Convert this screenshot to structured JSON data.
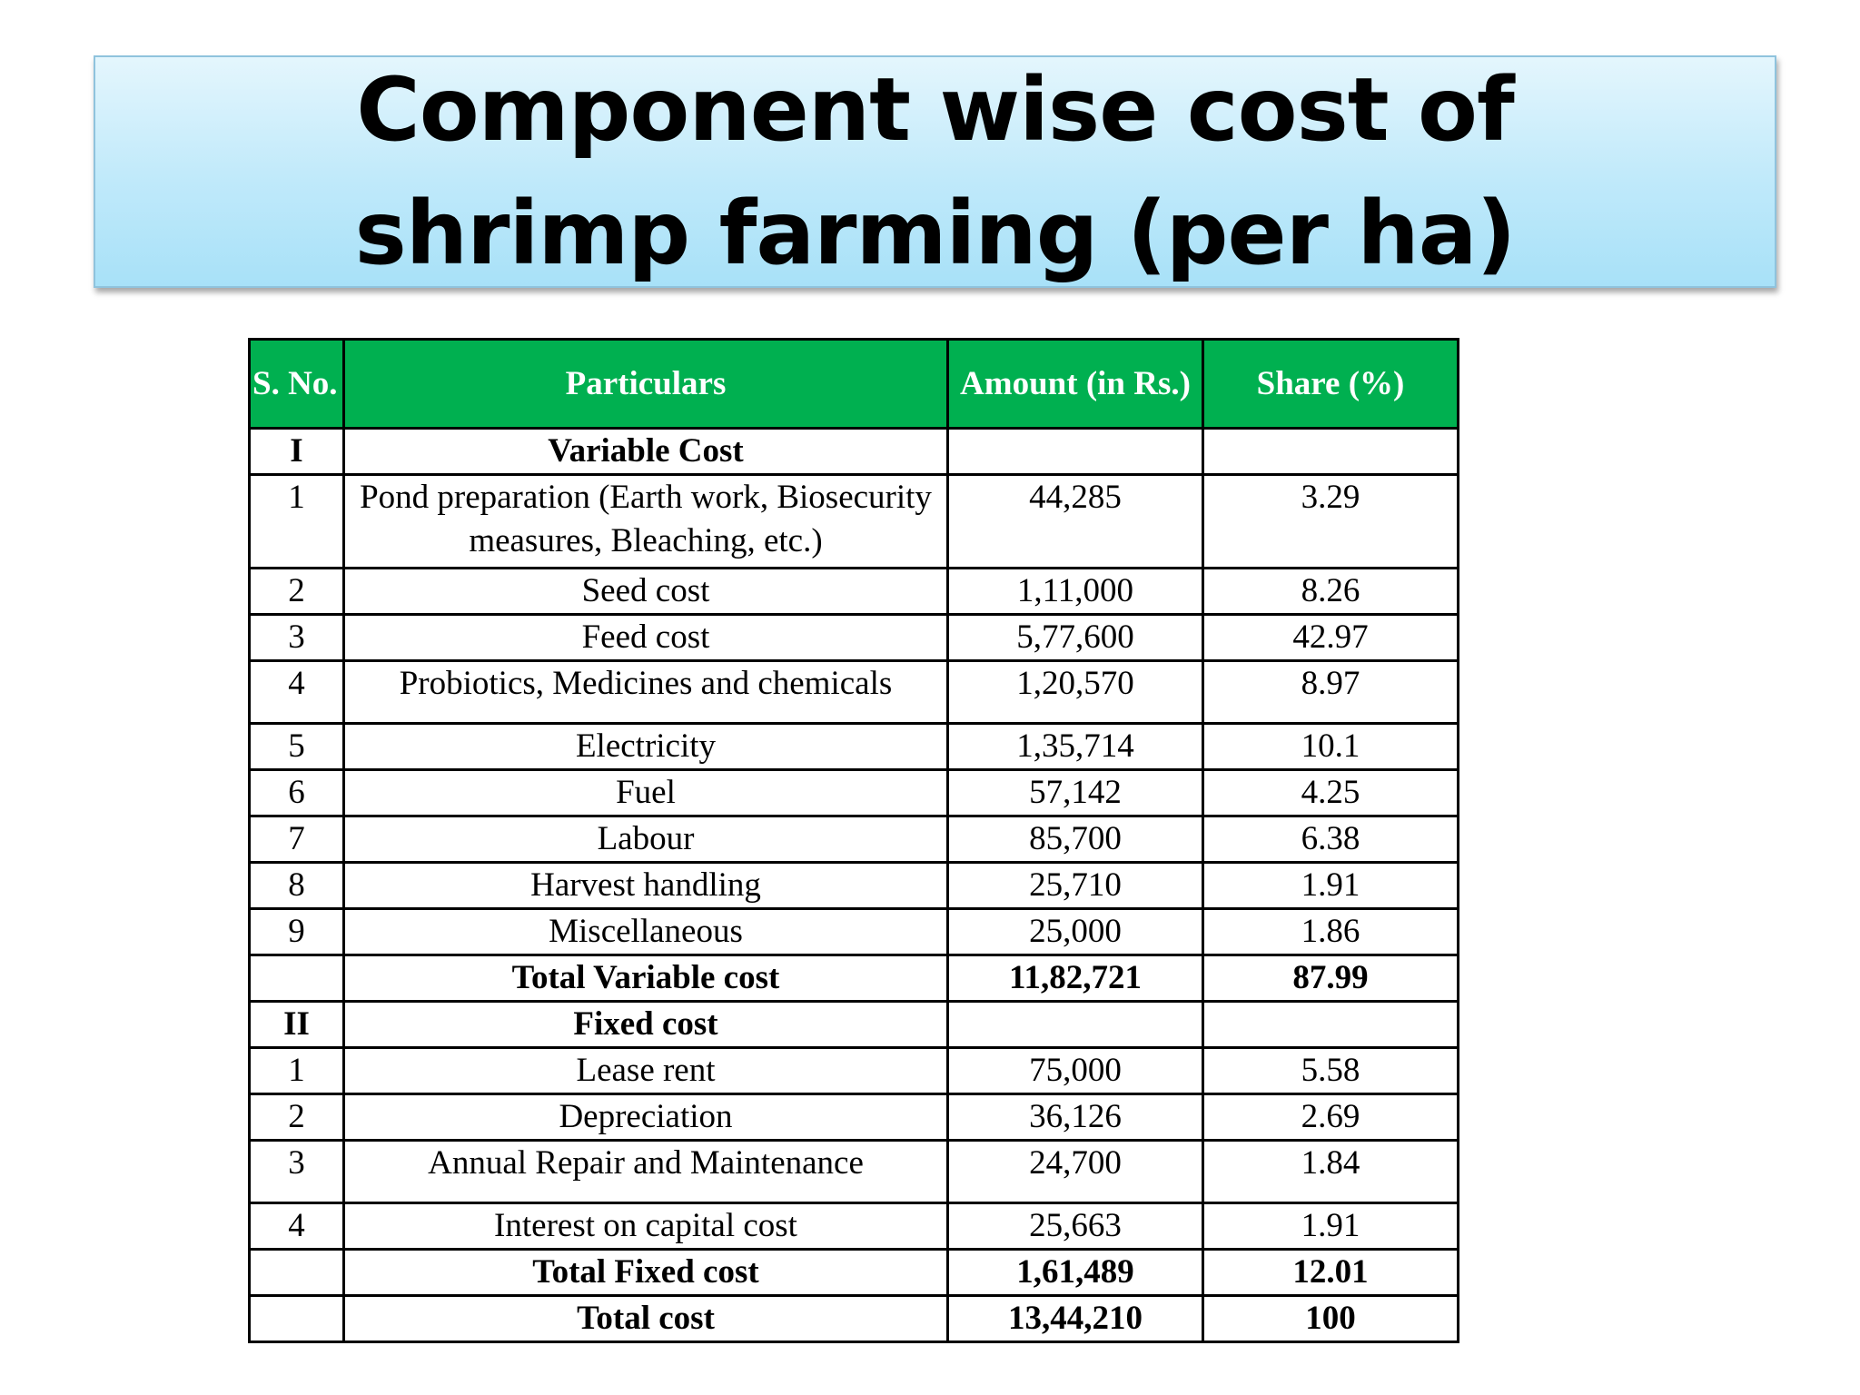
{
  "title": "Component wise cost of shrimp farming (per ha)",
  "table": {
    "headers": {
      "sno": "S. No.",
      "particulars": "Particulars",
      "amount": "Amount (in Rs.)",
      "share": "Share (%)"
    },
    "rows": [
      {
        "sno": "I",
        "particulars": "Variable Cost",
        "amount": "",
        "share": "",
        "bold": true,
        "kind": "r"
      },
      {
        "sno": "1",
        "particulars": "Pond preparation (Earth work, Biosecurity measures, Bleaching, etc.)",
        "amount": "44,285",
        "share": "3.29",
        "bold": false,
        "kind": "dbl"
      },
      {
        "sno": "2",
        "particulars": "Seed cost",
        "amount": "1,11,000",
        "share": "8.26",
        "bold": false,
        "kind": "r"
      },
      {
        "sno": "3",
        "particulars": "Feed cost",
        "amount": "5,77,600",
        "share": "42.97",
        "bold": false,
        "kind": "r"
      },
      {
        "sno": "4",
        "particulars": "Probiotics, Medicines and chemicals",
        "amount": "1,20,570",
        "share": "8.97",
        "bold": false,
        "kind": "tall"
      },
      {
        "sno": "5",
        "particulars": "Electricity",
        "amount": "1,35,714",
        "share": "10.1",
        "bold": false,
        "kind": "r"
      },
      {
        "sno": "6",
        "particulars": "Fuel",
        "amount": "57,142",
        "share": "4.25",
        "bold": false,
        "kind": "r"
      },
      {
        "sno": "7",
        "particulars": "Labour",
        "amount": "85,700",
        "share": "6.38",
        "bold": false,
        "kind": "r"
      },
      {
        "sno": "8",
        "particulars": "Harvest handling",
        "amount": "25,710",
        "share": "1.91",
        "bold": false,
        "kind": "r"
      },
      {
        "sno": "9",
        "particulars": "Miscellaneous",
        "amount": "25,000",
        "share": "1.86",
        "bold": false,
        "kind": "r"
      },
      {
        "sno": "",
        "particulars": "Total Variable cost",
        "amount": "11,82,721",
        "share": "87.99",
        "bold": true,
        "kind": "r"
      },
      {
        "sno": "II",
        "particulars": "Fixed cost",
        "amount": "",
        "share": "",
        "bold": true,
        "kind": "r"
      },
      {
        "sno": "1",
        "particulars": "Lease rent",
        "amount": "75,000",
        "share": "5.58",
        "bold": false,
        "kind": "r"
      },
      {
        "sno": "2",
        "particulars": "Depreciation",
        "amount": "36,126",
        "share": "2.69",
        "bold": false,
        "kind": "r"
      },
      {
        "sno": "3",
        "particulars": "Annual Repair and Maintenance",
        "amount": "24,700",
        "share": "1.84",
        "bold": false,
        "kind": "tall"
      },
      {
        "sno": "4",
        "particulars": "Interest on capital cost",
        "amount": "25,663",
        "share": "1.91",
        "bold": false,
        "kind": "r"
      },
      {
        "sno": "",
        "particulars": "Total Fixed cost",
        "amount": "1,61,489",
        "share": "12.01",
        "bold": true,
        "kind": "r"
      },
      {
        "sno": "",
        "particulars": "Total cost",
        "amount": "13,44,210",
        "share": "100",
        "bold": true,
        "kind": "r"
      }
    ]
  }
}
